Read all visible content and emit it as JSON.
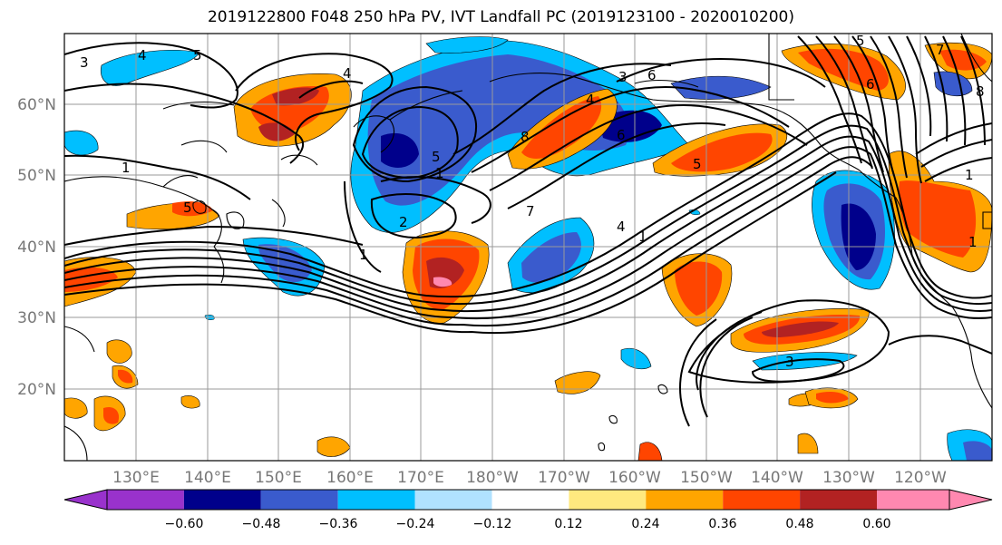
{
  "title": "2019122800 F048 250 hPa PV, IVT Landfall PC (2019123100 - 2020010200)",
  "map": {
    "projection": "PlateCarree",
    "lon_range": [
      120,
      250
    ],
    "lat_range": [
      10,
      70
    ],
    "gridlines": true
  },
  "axes": {
    "lon_ticks": [
      "130°E",
      "140°E",
      "150°E",
      "160°E",
      "170°E",
      "180°W",
      "170°W",
      "160°W",
      "150°W",
      "140°W",
      "130°W",
      "120°W"
    ],
    "lat_ticks": [
      "20°N",
      "30°N",
      "40°N",
      "50°N",
      "60°N"
    ]
  },
  "colorbar": {
    "ticks": [
      "−0.60",
      "−0.48",
      "−0.36",
      "−0.24",
      "−0.12",
      "0.12",
      "0.24",
      "0.36",
      "0.48",
      "0.60"
    ],
    "colors": [
      "#9932cc",
      "#00008b",
      "#3a5bcd",
      "#00bfff",
      "#b0e2ff",
      "#ffffff",
      "#ffe97f",
      "#ffa500",
      "#ff4500",
      "#b22222",
      "#ff88b0"
    ],
    "extend": "both"
  },
  "contour_labels": [
    "3",
    "4",
    "5",
    "6",
    "7",
    "8",
    "1",
    "2"
  ]
}
